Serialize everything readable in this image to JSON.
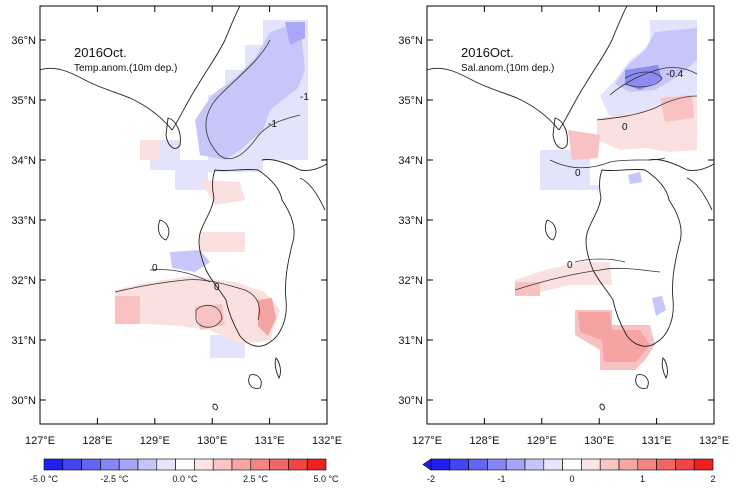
{
  "maps": [
    {
      "id": "temp",
      "title": "2016Oct.",
      "subtitle": "Temp.anom.(10m dep.)",
      "lat_labels": [
        "36°N",
        "35°N",
        "34°N",
        "33°N",
        "32°N",
        "31°N",
        "30°N"
      ],
      "lon_labels": [
        "127°E",
        "128°E",
        "129°E",
        "130°E",
        "131°E",
        "132°E"
      ],
      "contour_labels": [
        "-1",
        "-1",
        "0",
        "0"
      ],
      "colorbar": {
        "colors": [
          "#2020ee",
          "#4545f0",
          "#6565f2",
          "#8585f5",
          "#a5a5f7",
          "#c5c5fa",
          "#e5e5fd",
          "#ffffff",
          "#fde5e5",
          "#fac5c5",
          "#f7a5a5",
          "#f58585",
          "#f26565",
          "#f04545",
          "#ee2020"
        ],
        "tick_labels": [
          "-5.0 °C",
          "-2.5 °C",
          "0.0 °C",
          "2.5 °C",
          "5.0 °C"
        ],
        "left_arrow": false
      }
    },
    {
      "id": "sal",
      "title": "2016Oct.",
      "subtitle": "Sal.anom.(10m dep.)",
      "lat_labels": [
        "36°N",
        "35°N",
        "34°N",
        "33°N",
        "32°N",
        "31°N",
        "30°N"
      ],
      "lon_labels": [
        "127°E",
        "128°E",
        "129°E",
        "130°E",
        "131°E",
        "132°E"
      ],
      "contour_labels": [
        "-0.4",
        "0",
        "0",
        "0"
      ],
      "colorbar": {
        "colors": [
          "#2020ee",
          "#4545f0",
          "#6565f2",
          "#8585f5",
          "#a5a5f7",
          "#c5c5fa",
          "#e5e5fd",
          "#ffffff",
          "#fde5e5",
          "#fac5c5",
          "#f7a5a5",
          "#f58585",
          "#f26565",
          "#f04545",
          "#ee2020"
        ],
        "tick_labels": [
          "-2",
          "-1",
          "0",
          "1",
          "2"
        ],
        "left_arrow": true
      }
    }
  ],
  "palette": {
    "b1": "#6d6df2",
    "b2": "#8b8bf4",
    "b3": "#a8a8f6",
    "b4": "#c6c6f9",
    "b5": "#e3e3fc",
    "r1": "#fbe0e0",
    "r2": "#f8c2c2",
    "r3": "#f5a3a3",
    "r4": "#f28a8a"
  }
}
